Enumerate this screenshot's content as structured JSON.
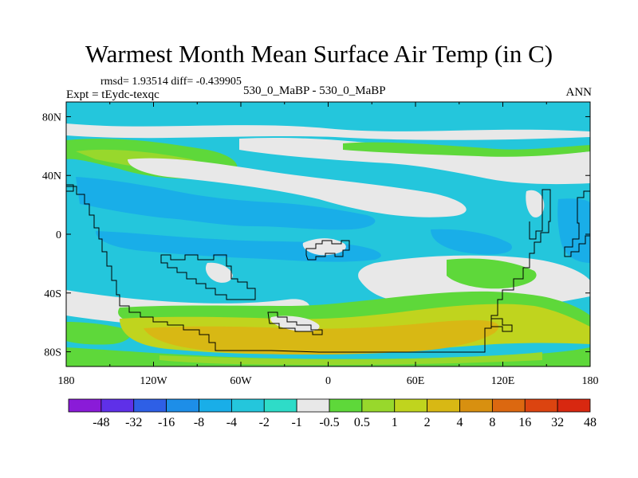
{
  "title": "Warmest Month Mean Surface Air Temp (in C)",
  "stats_line": "rmsd= 1.93514  diff= -0.439905",
  "expt_label": "Expt = tEydc-texqc",
  "experiment_pair": "530_0_MaBP - 530_0_MaBP",
  "period_label": "ANN",
  "axes": {
    "lon_ticks": [
      "180",
      "120W",
      "60W",
      "0",
      "60E",
      "120E",
      "180"
    ],
    "lat_ticks": [
      "80N",
      "40N",
      "0",
      "40S",
      "80S"
    ]
  },
  "colorbar": {
    "colors": [
      "#8a1bd8",
      "#5f30e8",
      "#2e5fe6",
      "#1d8ee8",
      "#19aee8",
      "#24c6dc",
      "#2edcc8",
      "#e8e8e8",
      "#5ed83a",
      "#98d82c",
      "#c0d41e",
      "#d8b814",
      "#d89010",
      "#dc6810",
      "#dc4410",
      "#d82810"
    ],
    "labels": [
      "-48",
      "-32",
      "-16",
      "-8",
      "-4",
      "-2",
      "-1",
      "-0.5",
      "0.5",
      "1",
      "2",
      "4",
      "8",
      "16",
      "32",
      "48"
    ]
  },
  "field_colors": {
    "main": "#24c6dc",
    "deep": "#19aee8",
    "neutral": "#e8e8e8",
    "green": "#5ed83a",
    "yellowgreen": "#98d82c",
    "ochre": "#c0d41e",
    "amber": "#d8b814",
    "coast": "#000000"
  }
}
